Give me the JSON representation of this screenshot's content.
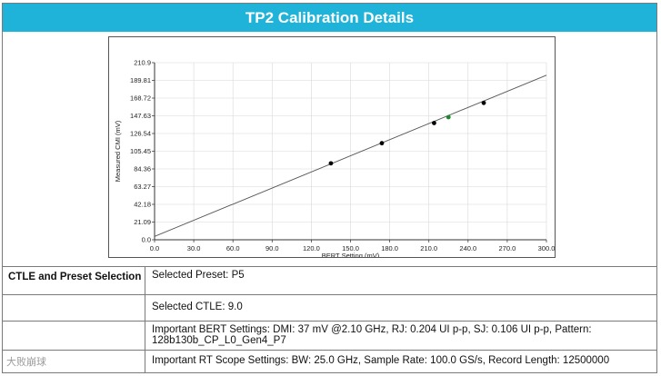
{
  "header": {
    "title": "TP2 Calibration Details"
  },
  "chart_data": {
    "type": "scatter",
    "title": "",
    "xlabel": "BERT Setting (mV)",
    "ylabel": "Measured CMI (mV)",
    "xlim": [
      0,
      300
    ],
    "ylim": [
      0,
      210.9
    ],
    "x_ticks": [
      "0.0",
      "30.0",
      "60.0",
      "90.0",
      "120.0",
      "150.0",
      "180.0",
      "210.0",
      "240.0",
      "270.0",
      "300.0"
    ],
    "y_ticks": [
      "0.0",
      "21.09",
      "42.18",
      "63.27",
      "84.36",
      "105.45",
      "126.54",
      "147.63",
      "168.72",
      "189.81",
      "210.9"
    ],
    "fit_line": {
      "x": [
        0,
        300
      ],
      "y": [
        4.0,
        196.0
      ]
    },
    "points": [
      {
        "x": 135,
        "y": 91,
        "color": "#000000"
      },
      {
        "x": 174,
        "y": 115,
        "color": "#000000"
      },
      {
        "x": 214,
        "y": 139,
        "color": "#000000"
      },
      {
        "x": 225,
        "y": 146,
        "color": "#1a8a2a"
      },
      {
        "x": 252,
        "y": 163,
        "color": "#000000"
      }
    ]
  },
  "table": {
    "section_label": "CTLE and Preset Selection",
    "rows": [
      {
        "text": "Selected Preset: P5"
      },
      {
        "text": "Selected CTLE: 9.0"
      },
      {
        "text": "Important BERT Settings: DMI: 37 mV @2.10 GHz, RJ: 0.204 UI p-p, SJ: 0.106 UI p-p, Pattern: 128b130b_CP_L0_Gen4_P7"
      },
      {
        "text": "Important RT Scope Settings: BW: 25.0 GHz, Sample Rate: 100.0 GS/s, Record Length: 12500000"
      }
    ]
  },
  "watermark": {
    "text": "大败崩球"
  }
}
